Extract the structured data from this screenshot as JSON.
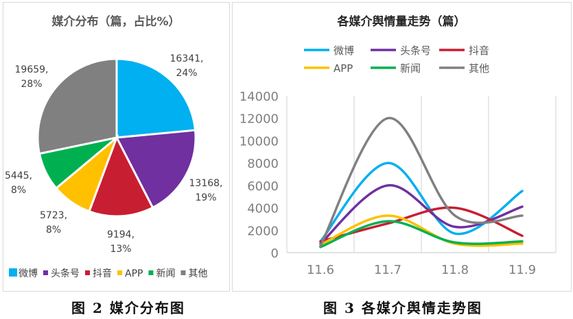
{
  "chart_data": [
    {
      "type": "pie",
      "title": "媒介分布（篇，占比%）",
      "categories": [
        "微博",
        "头条号",
        "抖音",
        "APP",
        "新闻",
        "其他"
      ],
      "values": [
        16341,
        13168,
        9194,
        5723,
        5445,
        19659
      ],
      "percent_labels": [
        "24%",
        "19%",
        "13%",
        "8%",
        "8%",
        "28%"
      ],
      "colors": [
        "#00b0f0",
        "#7030a0",
        "#c81e32",
        "#ffc000",
        "#00b050",
        "#808080"
      ],
      "legend": "bottom"
    },
    {
      "type": "line",
      "title": "各媒介舆情量走势（篇）",
      "x": [
        "11.6",
        "11.7",
        "11.8",
        "11.9"
      ],
      "series": [
        {
          "name": "微博",
          "color": "#00b0f0",
          "values": [
            1000,
            8000,
            1700,
            5500
          ]
        },
        {
          "name": "头条号",
          "color": "#7030a0",
          "values": [
            800,
            6000,
            2300,
            4100
          ]
        },
        {
          "name": "抖音",
          "color": "#c81e32",
          "values": [
            1000,
            2600,
            4000,
            1500
          ]
        },
        {
          "name": "APP",
          "color": "#ffc000",
          "values": [
            700,
            3300,
            800,
            800
          ]
        },
        {
          "name": "新闻",
          "color": "#00b050",
          "values": [
            500,
            2800,
            900,
            1000
          ]
        },
        {
          "name": "其他",
          "color": "#808080",
          "values": [
            600,
            12000,
            3300,
            3300
          ]
        }
      ],
      "yticks": [
        0,
        2000,
        4000,
        6000,
        8000,
        10000,
        12000,
        14000
      ],
      "ylim": [
        0,
        14000
      ],
      "grid": "vertical",
      "legend": "top",
      "smooth": true
    }
  ],
  "captions": {
    "fig2": "图 2  媒介分布图",
    "fig3": "图 3  各媒介舆情走势图"
  }
}
